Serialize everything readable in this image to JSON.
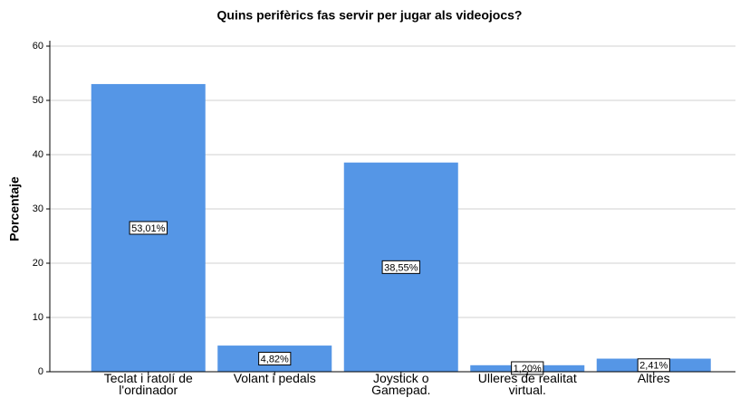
{
  "chart_data": {
    "type": "bar",
    "title": "Quins perifèrics fas servir per jugar als videojocs?",
    "y_label": "Porcentaje",
    "categories": [
      "Teclat i ratolí de l'ordinador",
      "Volant i pedals",
      "Joystick o Gamepad.",
      "Ulleres de realitat virtual.",
      "Altres"
    ],
    "values": [
      53.01,
      4.82,
      38.55,
      1.2,
      2.41
    ],
    "value_labels": [
      "53,01%",
      "4,82%",
      "38,55%",
      "1,20%",
      "2,41%"
    ],
    "color": "#5596e6",
    "ylim": [
      0,
      60
    ],
    "yticks": [
      0,
      10,
      20,
      30,
      40,
      50,
      60
    ],
    "grid": true
  }
}
